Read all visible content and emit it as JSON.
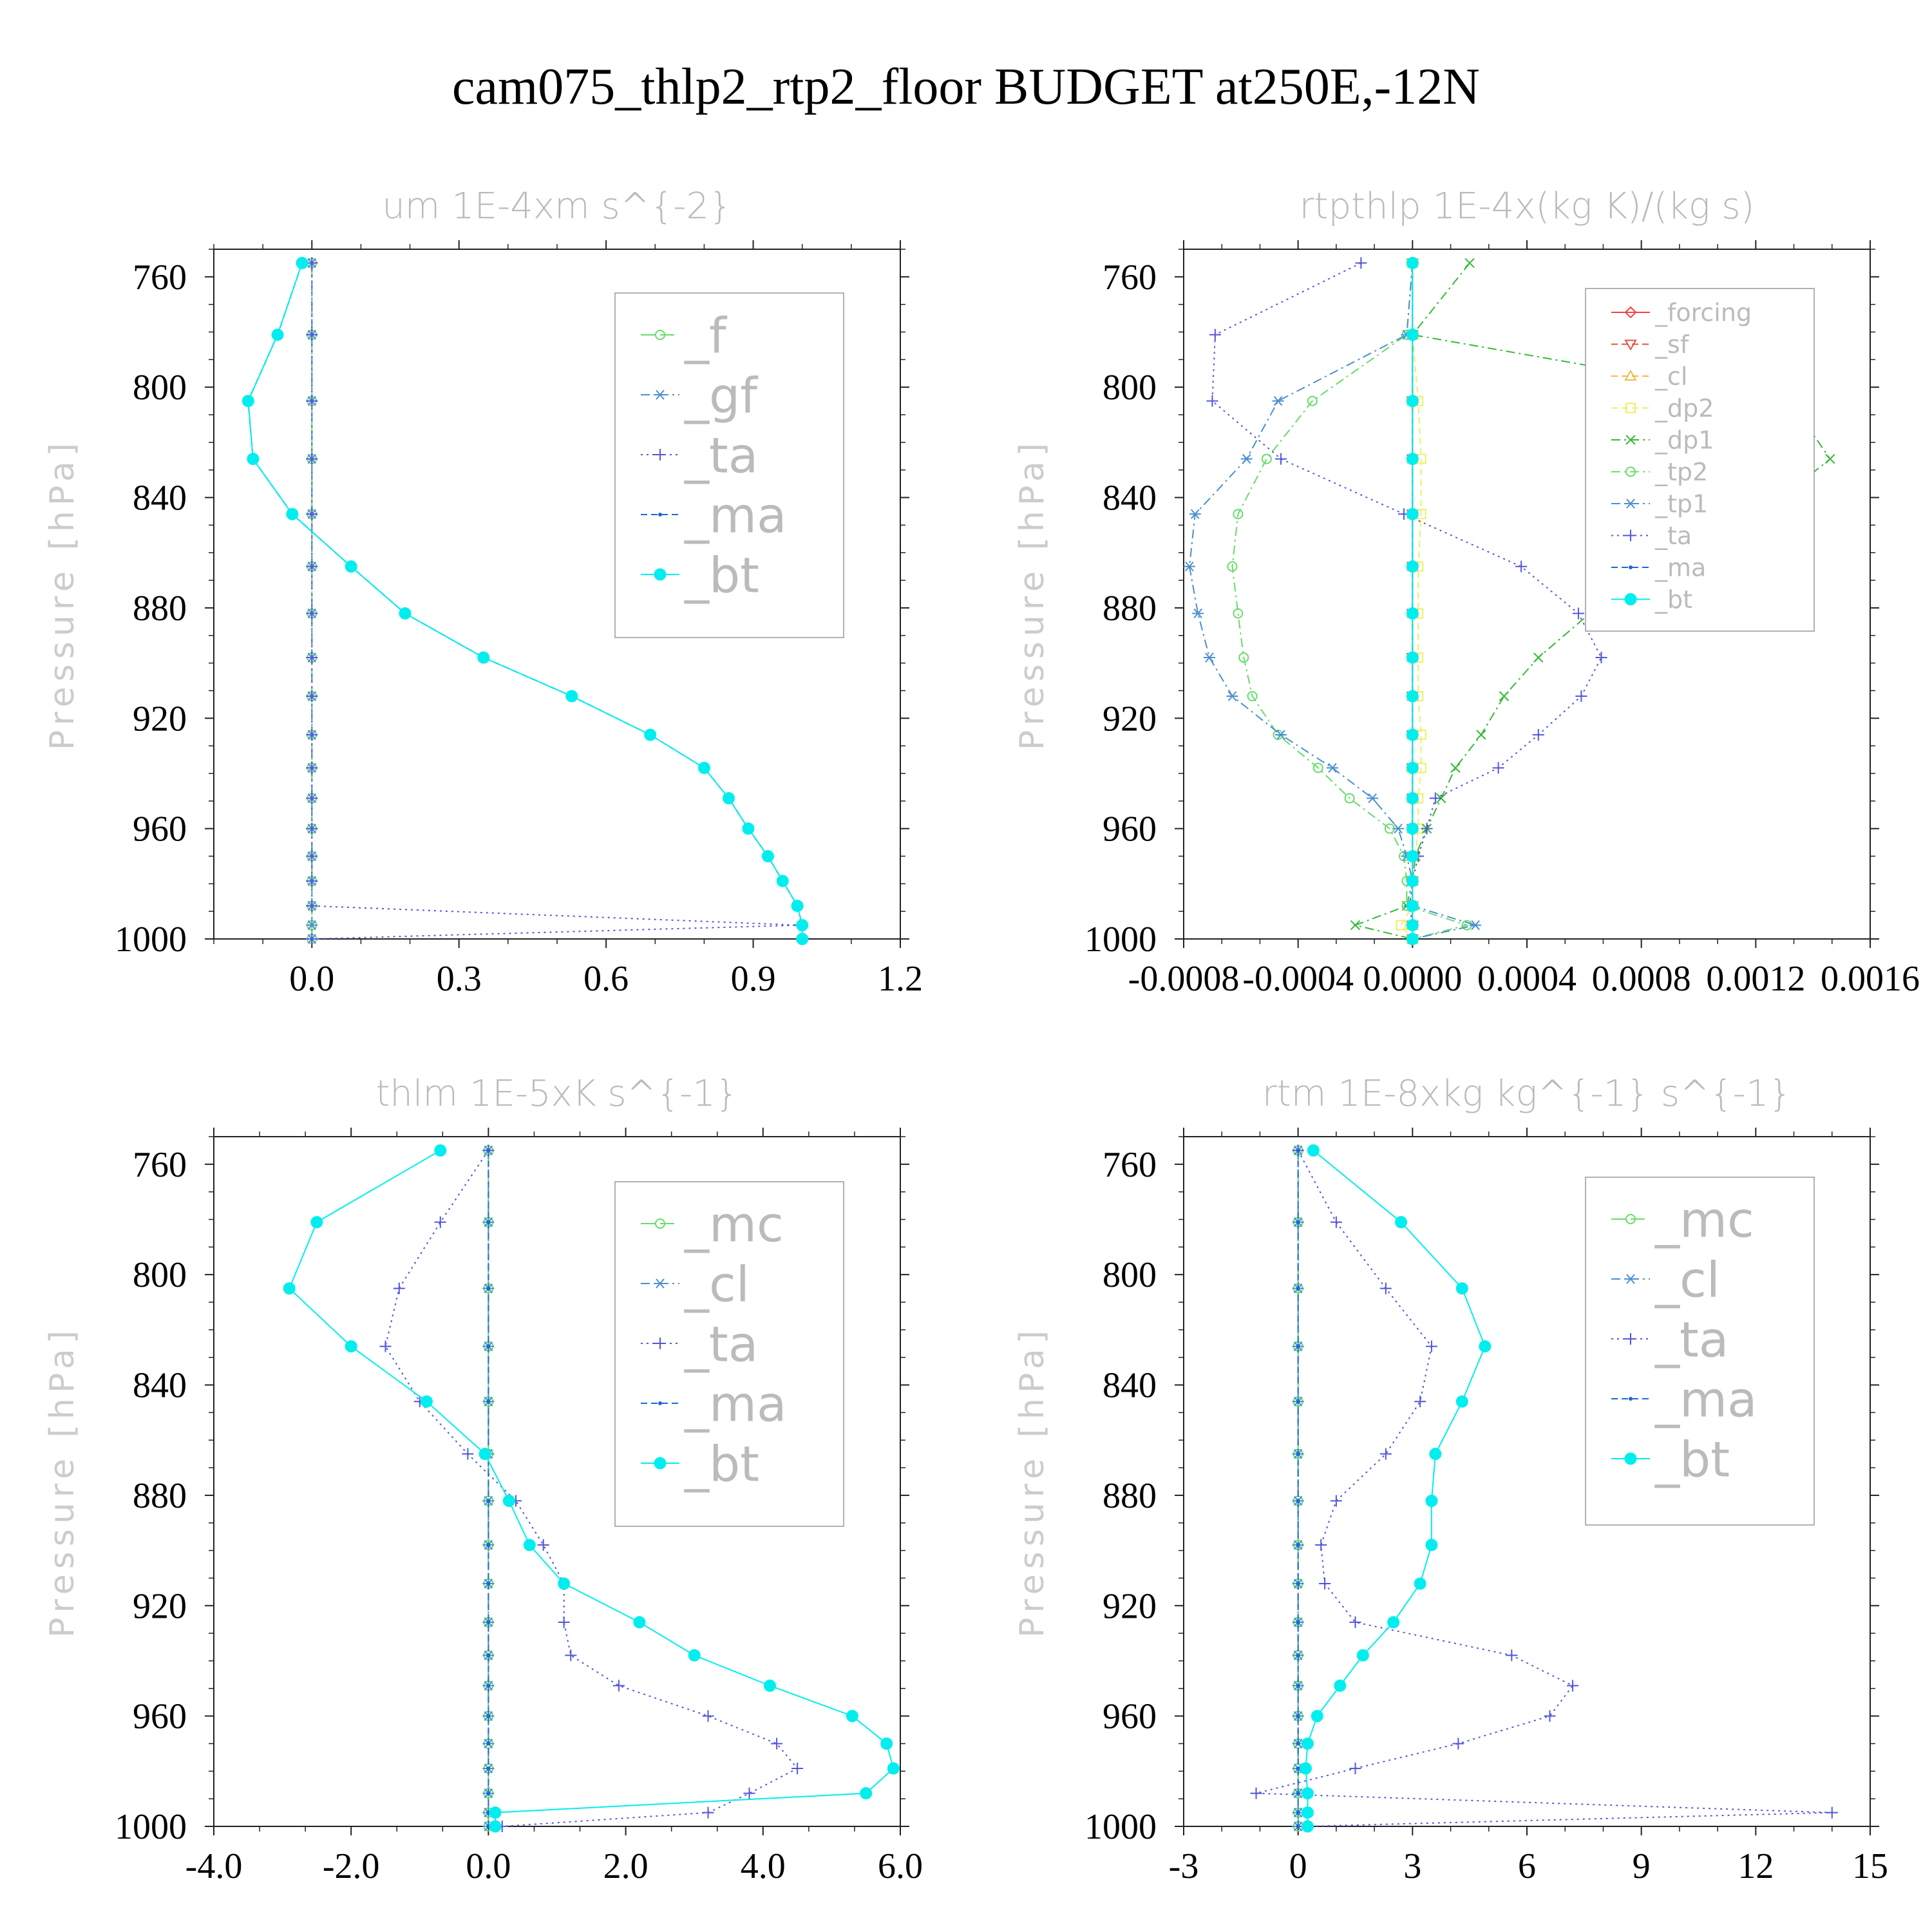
{
  "title": "cam075_thlp2_rtp2_floor  BUDGET at250E,-12N",
  "chart_data": [
    {
      "type": "line",
      "title": "um   1E-4xm s^{-2}",
      "ylabel": "Pressure [hPa]",
      "xlim": [
        -0.2,
        1.2
      ],
      "ylim": [
        1000,
        750
      ],
      "xticks": [
        "0.0",
        "0.3",
        "0.6",
        "0.9",
        "1.2"
      ],
      "xtick_values": [
        0.0,
        0.3,
        0.6,
        0.9,
        1.2
      ],
      "yticks": [
        "760",
        "800",
        "840",
        "880",
        "920",
        "960",
        "1000"
      ],
      "ytick_values": [
        760,
        800,
        840,
        880,
        920,
        960,
        1000
      ],
      "legend_position": "top-right",
      "levels": [
        755,
        781,
        805,
        826,
        846,
        865,
        882,
        898,
        912,
        926,
        938,
        949,
        960,
        970,
        979,
        988,
        995,
        1000
      ],
      "series": [
        {
          "name": "_f",
          "color": "#66dd66",
          "marker": "circle-open",
          "dash": "long",
          "values": [
            0,
            0,
            0,
            0,
            0,
            0,
            0,
            0,
            0,
            0,
            0,
            0,
            0,
            0,
            0,
            0,
            0,
            0
          ]
        },
        {
          "name": "_gf",
          "color": "#4a8fd0",
          "marker": "asterisk",
          "dash": "dashdot",
          "values": [
            0,
            0,
            0,
            0,
            0,
            0,
            0,
            0,
            0,
            0,
            0,
            0,
            0,
            0,
            0,
            0,
            0,
            0
          ]
        },
        {
          "name": "_ta",
          "color": "#5555dd",
          "marker": "plus",
          "dash": "dotted",
          "values": [
            0,
            0,
            0,
            0,
            0,
            0,
            0,
            0,
            0,
            0,
            0,
            0,
            0,
            0,
            0,
            0,
            0.995,
            0
          ]
        },
        {
          "name": "_ma",
          "color": "#1a6ad0",
          "marker": "dot",
          "dash": "dashed",
          "values": [
            -0.02,
            -0.07,
            -0.13,
            -0.12,
            -0.04,
            0.08,
            0.19,
            0.35,
            0.53,
            0.69,
            0.8,
            0.85,
            0.89,
            0.93,
            0.96,
            0.99,
            1.0,
            1.0
          ]
        },
        {
          "name": "_bt",
          "color": "#00eeee",
          "marker": "disc",
          "dash": "solid",
          "values": [
            -0.02,
            -0.07,
            -0.13,
            -0.12,
            -0.04,
            0.08,
            0.19,
            0.35,
            0.53,
            0.69,
            0.8,
            0.85,
            0.89,
            0.93,
            0.96,
            0.99,
            1.0,
            1.0
          ]
        }
      ]
    },
    {
      "type": "line",
      "title": "rtpthlp   1E-4x(kg K)/(kg s)",
      "ylabel": "Pressure [hPa]",
      "xlim": [
        -0.0008,
        0.0016
      ],
      "ylim": [
        1000,
        750
      ],
      "xticks": [
        "-0.0008",
        "-0.0004",
        "0.0000",
        "0.0004",
        "0.0008",
        "0.0012",
        "0.0016"
      ],
      "xtick_values": [
        -0.0008,
        -0.0004,
        0.0,
        0.0004,
        0.0008,
        0.0012,
        0.0016
      ],
      "yticks": [
        "760",
        "800",
        "840",
        "880",
        "920",
        "960",
        "1000"
      ],
      "ytick_values": [
        760,
        800,
        840,
        880,
        920,
        960,
        1000
      ],
      "legend_position": "top-right",
      "levels": [
        755,
        781,
        805,
        826,
        846,
        865,
        882,
        898,
        912,
        926,
        938,
        949,
        960,
        970,
        979,
        988,
        995,
        1000
      ],
      "series": [
        {
          "name": "_forcing",
          "color": "#ee4444",
          "marker": "diamond-open",
          "dash": "solid",
          "values": [
            0,
            0,
            0,
            0,
            0,
            0,
            0,
            0,
            0,
            0,
            0,
            0,
            0,
            0,
            0,
            0,
            0,
            0
          ]
        },
        {
          "name": "_sf",
          "color": "#dd5544",
          "marker": "triangle-down",
          "dash": "dashed",
          "values": [
            0,
            0,
            0,
            0,
            0,
            0,
            0,
            0,
            0,
            0,
            0,
            0,
            0,
            0,
            0,
            0,
            0,
            0
          ]
        },
        {
          "name": "_cl",
          "color": "#eebb44",
          "marker": "triangle-open",
          "dash": "dashed",
          "values": [
            0,
            0,
            0,
            0,
            0,
            0,
            0,
            0,
            0,
            0,
            0,
            0,
            0,
            0,
            0,
            0,
            0,
            0
          ]
        },
        {
          "name": "_dp2",
          "color": "#eeee66",
          "marker": "square-open",
          "dash": "dashed",
          "values": [
            0,
            0,
            2e-05,
            3e-05,
            3e-05,
            2e-05,
            2e-05,
            2e-05,
            2e-05,
            3e-05,
            3e-05,
            2e-05,
            2e-05,
            1e-05,
            0,
            0,
            -4e-05,
            0
          ]
        },
        {
          "name": "_dp1",
          "color": "#33bb33",
          "marker": "x",
          "dash": "dashdot",
          "values": [
            0.0002,
            0,
            0.00132,
            0.00146,
            0.00122,
            0.00085,
            0.00062,
            0.00044,
            0.00032,
            0.00024,
            0.00015,
            0.0001,
            5e-05,
            1e-05,
            0,
            -2e-05,
            -0.0002,
            0
          ]
        },
        {
          "name": "_tp2",
          "color": "#66dd66",
          "marker": "circle-open",
          "dash": "dashdot",
          "values": [
            0,
            -2e-05,
            -0.00035,
            -0.00051,
            -0.00061,
            -0.00063,
            -0.00061,
            -0.00059,
            -0.00056,
            -0.00047,
            -0.00033,
            -0.00022,
            -8e-05,
            -3e-05,
            -2e-05,
            -2e-05,
            0.00019,
            0
          ]
        },
        {
          "name": "_tp1",
          "color": "#4a8fd0",
          "marker": "asterisk",
          "dash": "dashdot",
          "values": [
            0,
            -2e-05,
            -0.00047,
            -0.00058,
            -0.00076,
            -0.00078,
            -0.00075,
            -0.00071,
            -0.00063,
            -0.00046,
            -0.00028,
            -0.00014,
            -5e-05,
            -2e-05,
            0,
            0,
            0.00022,
            0
          ]
        },
        {
          "name": "_ta",
          "color": "#5555dd",
          "marker": "plus",
          "dash": "dotted",
          "values": [
            -0.00018,
            -0.00069,
            -0.0007,
            -0.00046,
            -3e-05,
            0.00038,
            0.00058,
            0.00066,
            0.00059,
            0.00044,
            0.0003,
            8e-05,
            5e-05,
            2e-05,
            0,
            -1e-05,
            0,
            0
          ]
        },
        {
          "name": "_ma",
          "color": "#1a6ad0",
          "marker": "dot",
          "dash": "dashed",
          "values": [
            0,
            0,
            0,
            0,
            0,
            0,
            0,
            0,
            0,
            0,
            0,
            0,
            0,
            0,
            0,
            0,
            0,
            0
          ]
        },
        {
          "name": "_bt",
          "color": "#00eeee",
          "marker": "disc",
          "dash": "solid",
          "values": [
            0,
            0,
            0,
            0,
            0,
            0,
            0,
            0,
            0,
            0,
            0,
            0,
            0,
            0,
            0,
            0,
            0,
            0
          ]
        }
      ]
    },
    {
      "type": "line",
      "title": "thlm   1E-5xK s^{-1}",
      "ylabel": "Pressure [hPa]",
      "xlim": [
        -4.0,
        6.0
      ],
      "ylim": [
        1000,
        750
      ],
      "xticks": [
        "-4.0",
        "-2.0",
        "0.0",
        "2.0",
        "4.0",
        "6.0"
      ],
      "xtick_values": [
        -4.0,
        -2.0,
        0.0,
        2.0,
        4.0,
        6.0
      ],
      "yticks": [
        "760",
        "800",
        "840",
        "880",
        "920",
        "960",
        "1000"
      ],
      "ytick_values": [
        760,
        800,
        840,
        880,
        920,
        960,
        1000
      ],
      "legend_position": "top-right",
      "levels": [
        755,
        781,
        805,
        826,
        846,
        865,
        882,
        898,
        912,
        926,
        938,
        949,
        960,
        970,
        979,
        988,
        995,
        1000
      ],
      "series": [
        {
          "name": "_mc",
          "color": "#66dd66",
          "marker": "circle-open",
          "dash": "long",
          "values": [
            0,
            0,
            0,
            0,
            0,
            0,
            0,
            0,
            0,
            0,
            0,
            0,
            0,
            0,
            0,
            0,
            0,
            0
          ]
        },
        {
          "name": "_cl",
          "color": "#4a8fd0",
          "marker": "asterisk",
          "dash": "dashdot",
          "values": [
            0,
            0,
            0,
            0,
            0,
            0,
            0,
            0,
            0,
            0,
            0,
            0,
            0,
            0,
            0,
            0,
            0,
            0
          ]
        },
        {
          "name": "_ta",
          "color": "#5555dd",
          "marker": "plus",
          "dash": "dotted",
          "values": [
            0,
            -0.7,
            -1.3,
            -1.5,
            -1.0,
            -0.3,
            0.4,
            0.8,
            1.1,
            1.1,
            1.2,
            1.9,
            3.2,
            4.2,
            4.5,
            3.8,
            3.2,
            0.2
          ]
        },
        {
          "name": "_ma",
          "color": "#1a6ad0",
          "marker": "dot",
          "dash": "dashed",
          "values": [
            0,
            0,
            0,
            0,
            0,
            0,
            0,
            0,
            0,
            0,
            0,
            0,
            0,
            0,
            0,
            0,
            0,
            0
          ]
        },
        {
          "name": "_bt",
          "color": "#00eeee",
          "marker": "disc",
          "dash": "solid",
          "values": [
            -0.7,
            -2.5,
            -2.9,
            -2.0,
            -0.9,
            -0.05,
            0.3,
            0.6,
            1.1,
            2.2,
            3.0,
            4.1,
            5.3,
            5.8,
            5.9,
            5.5,
            0.1,
            0.1
          ]
        }
      ]
    },
    {
      "type": "line",
      "title": "rtm   1E-8xkg kg^{-1} s^{-1}",
      "ylabel": "Pressure [hPa]",
      "xlim": [
        -3,
        15
      ],
      "ylim": [
        1000,
        750
      ],
      "xticks": [
        "-3",
        "0",
        "3",
        "6",
        "9",
        "12",
        "15"
      ],
      "xtick_values": [
        -3,
        0,
        3,
        6,
        9,
        12,
        15
      ],
      "yticks": [
        "760",
        "800",
        "840",
        "880",
        "920",
        "960",
        "1000"
      ],
      "ytick_values": [
        760,
        800,
        840,
        880,
        920,
        960,
        1000
      ],
      "legend_position": "top-right",
      "levels": [
        755,
        781,
        805,
        826,
        846,
        865,
        882,
        898,
        912,
        926,
        938,
        949,
        960,
        970,
        979,
        988,
        995,
        1000
      ],
      "series": [
        {
          "name": "_mc",
          "color": "#66dd66",
          "marker": "circle-open",
          "dash": "long",
          "values": [
            0,
            0,
            0,
            0,
            0,
            0,
            0,
            0,
            0,
            0,
            0,
            0,
            0,
            0,
            0,
            0,
            0,
            0
          ]
        },
        {
          "name": "_cl",
          "color": "#4a8fd0",
          "marker": "asterisk",
          "dash": "dashdot",
          "values": [
            0,
            0,
            0,
            0,
            0,
            0,
            0,
            0,
            0,
            0,
            0,
            0,
            0,
            0,
            0,
            0,
            0,
            0
          ]
        },
        {
          "name": "_ta",
          "color": "#5555dd",
          "marker": "plus",
          "dash": "dotted",
          "values": [
            0,
            1.0,
            2.3,
            3.5,
            3.2,
            2.3,
            1.0,
            0.6,
            0.7,
            1.5,
            5.6,
            7.2,
            6.6,
            4.2,
            1.5,
            -1.1,
            14.0,
            0.2
          ]
        },
        {
          "name": "_ma",
          "color": "#1a6ad0",
          "marker": "dot",
          "dash": "dashed",
          "values": [
            0,
            0,
            0,
            0,
            0,
            0,
            0,
            0,
            0,
            0,
            0,
            0,
            0,
            0,
            0,
            0,
            0,
            0
          ]
        },
        {
          "name": "_bt",
          "color": "#00eeee",
          "marker": "disc",
          "dash": "solid",
          "values": [
            0.4,
            2.7,
            4.3,
            4.9,
            4.3,
            3.6,
            3.5,
            3.5,
            3.2,
            2.5,
            1.7,
            1.1,
            0.5,
            0.25,
            0.2,
            0.25,
            0.25,
            0.25
          ]
        }
      ]
    }
  ]
}
